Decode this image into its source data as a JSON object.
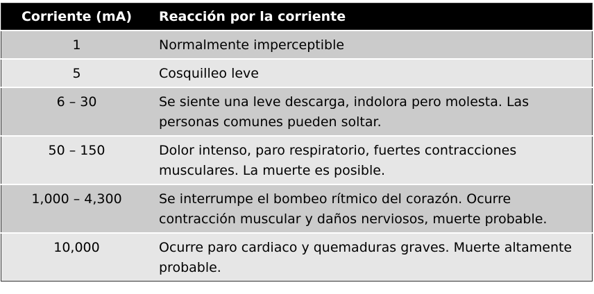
{
  "table": {
    "headers": [
      "Corriente (mA)",
      "Reacción por la corriente"
    ],
    "rows": [
      {
        "current": "1",
        "reaction": "Normalmente imperceptible"
      },
      {
        "current": "5",
        "reaction": "Cosquilleo leve"
      },
      {
        "current": "6 – 30",
        "reaction": "Se siente una leve descarga, indolora pero molesta. Las personas comunes pueden soltar."
      },
      {
        "current": "50 – 150",
        "reaction": "Dolor intenso, paro respiratorio, fuertes contracciones musculares. La muerte es posible."
      },
      {
        "current": "1,000 – 4,300",
        "reaction": "Se interrumpe el bombeo rítmico del corazón. Ocurre contracción muscular y daños nerviosos, muerte probable."
      },
      {
        "current": "10,000",
        "reaction": "Ocurre paro cardiaco y quemaduras graves. Muerte altamente probable."
      }
    ]
  },
  "colors": {
    "header_bg": "#000000",
    "row_dark": "#cbcbcb",
    "row_light": "#e6e6e6"
  }
}
